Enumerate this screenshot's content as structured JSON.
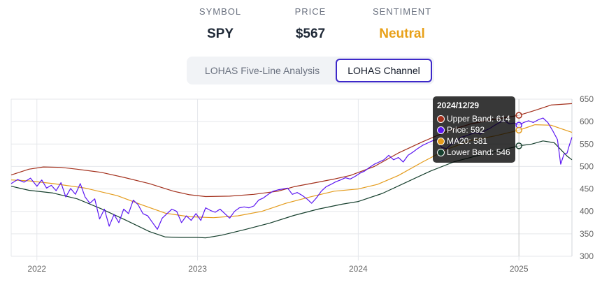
{
  "header": {
    "symbol_label": "SYMBOL",
    "symbol_value": "SPY",
    "price_label": "PRICE",
    "price_value": "$567",
    "sentiment_label": "SENTIMENT",
    "sentiment_value": "Neutral",
    "sentiment_color": "#e8a018"
  },
  "tabs": [
    {
      "label": "LOHAS Five-Line Analysis",
      "active": false
    },
    {
      "label": "LOHAS Channel",
      "active": true
    }
  ],
  "tooltip": {
    "date": "2024/12/29",
    "rows": [
      {
        "name": "Upper Band",
        "value": "614",
        "text": "Upper Band: 614",
        "color": "#a3301c"
      },
      {
        "name": "Price",
        "value": "592",
        "text": "Price: 592",
        "color": "#5b16f2"
      },
      {
        "name": "MA20",
        "value": "581",
        "text": "MA20: 581",
        "color": "#e49b1b"
      },
      {
        "name": "Lower Band",
        "value": "546",
        "text": "Lower Band: 546",
        "color": "#17402e"
      }
    ]
  },
  "chart_data": {
    "type": "line",
    "x_domain": [
      2021.84,
      2025.33
    ],
    "ylim": [
      300,
      650
    ],
    "y_ticks": [
      300,
      350,
      400,
      450,
      500,
      550,
      600,
      650
    ],
    "x_ticks": [
      {
        "value": 2022.0,
        "label": "2022"
      },
      {
        "value": 2023.0,
        "label": "2023"
      },
      {
        "value": 2024.0,
        "label": "2024"
      },
      {
        "value": 2025.0,
        "label": "2025"
      }
    ],
    "y_axis_position": "right",
    "grid": true,
    "crosshair_x": 2025.0,
    "series": [
      {
        "name": "Upper Band",
        "color": "#a3301c",
        "points": [
          [
            2021.84,
            481
          ],
          [
            2021.95,
            494
          ],
          [
            2022.04,
            499
          ],
          [
            2022.15,
            498
          ],
          [
            2022.25,
            494
          ],
          [
            2022.4,
            487
          ],
          [
            2022.55,
            475
          ],
          [
            2022.7,
            462
          ],
          [
            2022.85,
            445
          ],
          [
            2022.95,
            437
          ],
          [
            2023.05,
            433
          ],
          [
            2023.2,
            434
          ],
          [
            2023.35,
            438
          ],
          [
            2023.5,
            445
          ],
          [
            2023.6,
            455
          ],
          [
            2023.75,
            465
          ],
          [
            2023.85,
            472
          ],
          [
            2023.95,
            480
          ],
          [
            2024.1,
            500
          ],
          [
            2024.25,
            530
          ],
          [
            2024.4,
            555
          ],
          [
            2024.55,
            578
          ],
          [
            2024.7,
            595
          ],
          [
            2024.85,
            605
          ],
          [
            2025.0,
            614
          ],
          [
            2025.1,
            625
          ],
          [
            2025.2,
            637
          ],
          [
            2025.33,
            640
          ]
        ]
      },
      {
        "name": "MA20",
        "color": "#e49b1b",
        "points": [
          [
            2021.84,
            470
          ],
          [
            2021.95,
            468
          ],
          [
            2022.1,
            462
          ],
          [
            2022.3,
            452
          ],
          [
            2022.5,
            435
          ],
          [
            2022.65,
            415
          ],
          [
            2022.8,
            396
          ],
          [
            2022.95,
            388
          ],
          [
            2023.1,
            386
          ],
          [
            2023.25,
            390
          ],
          [
            2023.4,
            400
          ],
          [
            2023.55,
            418
          ],
          [
            2023.7,
            432
          ],
          [
            2023.85,
            445
          ],
          [
            2024.0,
            450
          ],
          [
            2024.12,
            460
          ],
          [
            2024.25,
            480
          ],
          [
            2024.4,
            510
          ],
          [
            2024.55,
            538
          ],
          [
            2024.7,
            558
          ],
          [
            2024.85,
            568
          ],
          [
            2025.0,
            581
          ],
          [
            2025.1,
            593
          ],
          [
            2025.2,
            592
          ],
          [
            2025.33,
            576
          ]
        ]
      },
      {
        "name": "Lower Band",
        "color": "#17402e",
        "points": [
          [
            2021.84,
            456
          ],
          [
            2021.95,
            447
          ],
          [
            2022.1,
            441
          ],
          [
            2022.25,
            428
          ],
          [
            2022.4,
            406
          ],
          [
            2022.55,
            381
          ],
          [
            2022.7,
            355
          ],
          [
            2022.8,
            343
          ],
          [
            2022.9,
            342
          ],
          [
            2023.0,
            342
          ],
          [
            2023.05,
            341
          ],
          [
            2023.15,
            347
          ],
          [
            2023.3,
            360
          ],
          [
            2023.45,
            374
          ],
          [
            2023.6,
            391
          ],
          [
            2023.75,
            405
          ],
          [
            2023.9,
            416
          ],
          [
            2024.0,
            422
          ],
          [
            2024.15,
            440
          ],
          [
            2024.3,
            465
          ],
          [
            2024.45,
            490
          ],
          [
            2024.6,
            511
          ],
          [
            2024.75,
            525
          ],
          [
            2024.9,
            537
          ],
          [
            2025.0,
            546
          ],
          [
            2025.08,
            550
          ],
          [
            2025.15,
            557
          ],
          [
            2025.22,
            553
          ],
          [
            2025.3,
            523
          ],
          [
            2025.33,
            515
          ]
        ]
      },
      {
        "name": "Price",
        "color": "#5b16f2",
        "points": [
          [
            2021.84,
            462
          ],
          [
            2021.88,
            471
          ],
          [
            2021.92,
            465
          ],
          [
            2021.96,
            474
          ],
          [
            2022.0,
            456
          ],
          [
            2022.03,
            470
          ],
          [
            2022.06,
            452
          ],
          [
            2022.09,
            458
          ],
          [
            2022.12,
            446
          ],
          [
            2022.15,
            464
          ],
          [
            2022.18,
            432
          ],
          [
            2022.21,
            451
          ],
          [
            2022.24,
            438
          ],
          [
            2022.27,
            462
          ],
          [
            2022.3,
            432
          ],
          [
            2022.33,
            418
          ],
          [
            2022.36,
            428
          ],
          [
            2022.39,
            383
          ],
          [
            2022.42,
            405
          ],
          [
            2022.45,
            367
          ],
          [
            2022.48,
            393
          ],
          [
            2022.51,
            375
          ],
          [
            2022.54,
            405
          ],
          [
            2022.57,
            395
          ],
          [
            2022.6,
            425
          ],
          [
            2022.63,
            415
          ],
          [
            2022.66,
            395
          ],
          [
            2022.69,
            390
          ],
          [
            2022.72,
            375
          ],
          [
            2022.75,
            360
          ],
          [
            2022.78,
            385
          ],
          [
            2022.81,
            395
          ],
          [
            2022.84,
            405
          ],
          [
            2022.87,
            400
          ],
          [
            2022.9,
            375
          ],
          [
            2022.93,
            390
          ],
          [
            2022.96,
            380
          ],
          [
            2022.99,
            395
          ],
          [
            2023.02,
            380
          ],
          [
            2023.05,
            408
          ],
          [
            2023.08,
            402
          ],
          [
            2023.11,
            398
          ],
          [
            2023.14,
            405
          ],
          [
            2023.17,
            395
          ],
          [
            2023.2,
            385
          ],
          [
            2023.23,
            400
          ],
          [
            2023.26,
            408
          ],
          [
            2023.29,
            410
          ],
          [
            2023.32,
            408
          ],
          [
            2023.35,
            412
          ],
          [
            2023.38,
            425
          ],
          [
            2023.41,
            430
          ],
          [
            2023.44,
            438
          ],
          [
            2023.47,
            445
          ],
          [
            2023.5,
            448
          ],
          [
            2023.53,
            450
          ],
          [
            2023.56,
            452
          ],
          [
            2023.59,
            438
          ],
          [
            2023.62,
            442
          ],
          [
            2023.65,
            436
          ],
          [
            2023.68,
            428
          ],
          [
            2023.71,
            418
          ],
          [
            2023.74,
            430
          ],
          [
            2023.77,
            445
          ],
          [
            2023.8,
            455
          ],
          [
            2023.83,
            460
          ],
          [
            2023.86,
            466
          ],
          [
            2023.89,
            470
          ],
          [
            2023.92,
            475
          ],
          [
            2023.95,
            472
          ],
          [
            2023.98,
            478
          ],
          [
            2024.01,
            485
          ],
          [
            2024.04,
            490
          ],
          [
            2024.07,
            498
          ],
          [
            2024.1,
            505
          ],
          [
            2024.13,
            510
          ],
          [
            2024.16,
            515
          ],
          [
            2024.19,
            525
          ],
          [
            2024.22,
            515
          ],
          [
            2024.25,
            520
          ],
          [
            2024.28,
            510
          ],
          [
            2024.31,
            525
          ],
          [
            2024.34,
            532
          ],
          [
            2024.37,
            540
          ],
          [
            2024.4,
            547
          ],
          [
            2024.43,
            552
          ],
          [
            2024.46,
            557
          ],
          [
            2024.49,
            560
          ],
          [
            2024.52,
            542
          ],
          [
            2024.55,
            540
          ],
          [
            2024.58,
            550
          ],
          [
            2024.61,
            556
          ],
          [
            2024.64,
            565
          ],
          [
            2024.67,
            568
          ],
          [
            2024.7,
            572
          ],
          [
            2024.73,
            575
          ],
          [
            2024.76,
            572
          ],
          [
            2024.79,
            580
          ],
          [
            2024.82,
            585
          ],
          [
            2024.85,
            592
          ],
          [
            2024.88,
            598
          ],
          [
            2024.91,
            602
          ],
          [
            2024.94,
            595
          ],
          [
            2024.97,
            597
          ],
          [
            2025.0,
            592
          ],
          [
            2025.03,
            598
          ],
          [
            2025.06,
            602
          ],
          [
            2025.09,
            598
          ],
          [
            2025.12,
            604
          ],
          [
            2025.15,
            608
          ],
          [
            2025.18,
            598
          ],
          [
            2025.21,
            580
          ],
          [
            2025.24,
            560
          ],
          [
            2025.26,
            505
          ],
          [
            2025.28,
            527
          ],
          [
            2025.3,
            530
          ],
          [
            2025.31,
            543
          ],
          [
            2025.33,
            565
          ]
        ]
      }
    ]
  }
}
